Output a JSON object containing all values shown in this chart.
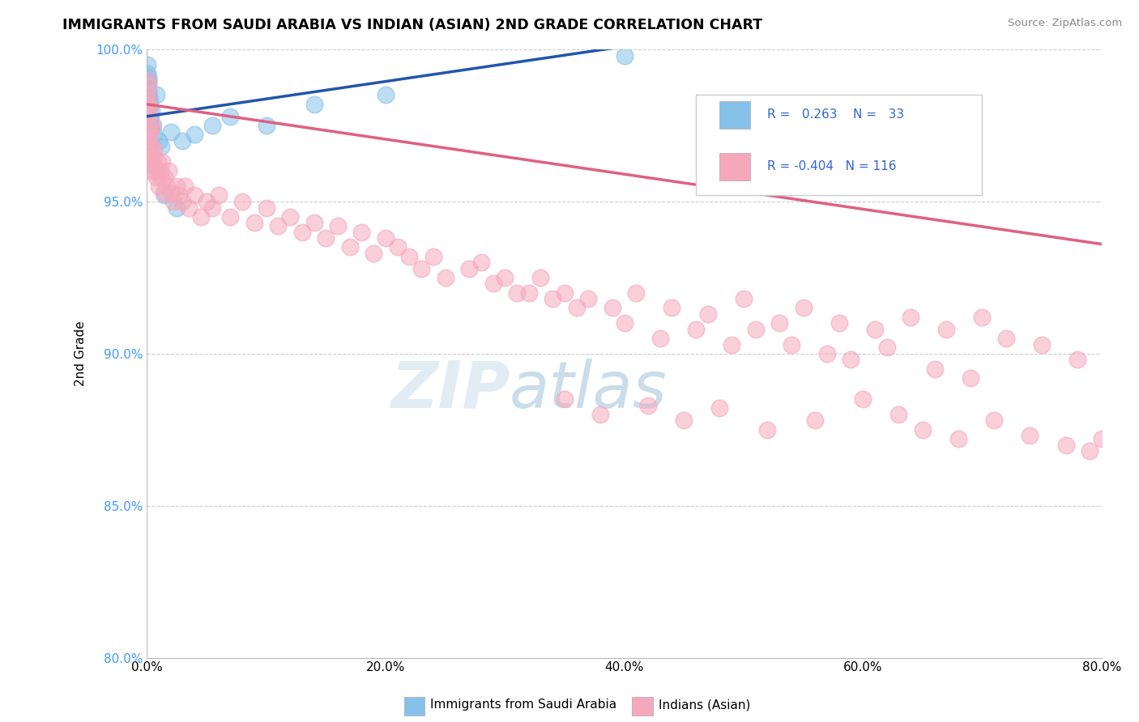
{
  "title": "IMMIGRANTS FROM SAUDI ARABIA VS INDIAN (ASIAN) 2ND GRADE CORRELATION CHART",
  "source": "Source: ZipAtlas.com",
  "ylabel": "2nd Grade",
  "xlim": [
    0.0,
    80.0
  ],
  "ylim": [
    80.0,
    100.0
  ],
  "xticks": [
    0.0,
    20.0,
    40.0,
    60.0,
    80.0
  ],
  "yticks": [
    80.0,
    85.0,
    90.0,
    95.0,
    100.0
  ],
  "xtick_labels": [
    "0.0%",
    "20.0%",
    "40.0%",
    "60.0%",
    "80.0%"
  ],
  "ytick_labels": [
    "80.0%",
    "85.0%",
    "90.0%",
    "95.0%",
    "100.0%"
  ],
  "blue_color": "#85C1E8",
  "pink_color": "#F5A8BC",
  "blue_line_color": "#2255AA",
  "pink_line_color": "#E06080",
  "R_blue": 0.263,
  "N_blue": 33,
  "R_pink": -0.404,
  "N_pink": 116,
  "watermark_zip": "ZIP",
  "watermark_atlas": "atlas",
  "legend_label_blue": "Immigrants from Saudi Arabia",
  "legend_label_pink": "Indians (Asian)",
  "blue_x": [
    0.05,
    0.07,
    0.08,
    0.09,
    0.1,
    0.11,
    0.12,
    0.13,
    0.14,
    0.15,
    0.18,
    0.2,
    0.22,
    0.25,
    0.3,
    0.35,
    0.4,
    0.5,
    0.6,
    0.8,
    1.0,
    1.2,
    1.5,
    2.0,
    2.5,
    3.0,
    4.0,
    5.5,
    7.0,
    10.0,
    14.0,
    20.0,
    40.0
  ],
  "blue_y": [
    99.5,
    99.2,
    98.8,
    98.6,
    99.0,
    98.5,
    98.7,
    99.1,
    98.9,
    98.4,
    98.3,
    98.0,
    97.8,
    98.2,
    97.5,
    97.8,
    98.0,
    97.5,
    97.2,
    98.5,
    97.0,
    96.8,
    95.2,
    97.3,
    94.8,
    97.0,
    97.2,
    97.5,
    97.8,
    97.5,
    98.2,
    98.5,
    99.8
  ],
  "pink_x": [
    0.05,
    0.07,
    0.08,
    0.09,
    0.1,
    0.12,
    0.13,
    0.15,
    0.17,
    0.18,
    0.2,
    0.22,
    0.25,
    0.28,
    0.3,
    0.35,
    0.4,
    0.45,
    0.5,
    0.55,
    0.6,
    0.7,
    0.8,
    0.9,
    1.0,
    1.1,
    1.2,
    1.3,
    1.4,
    1.5,
    1.7,
    1.8,
    2.0,
    2.2,
    2.5,
    2.7,
    3.0,
    3.2,
    3.5,
    4.0,
    4.5,
    5.0,
    5.5,
    6.0,
    7.0,
    8.0,
    9.0,
    10.0,
    11.0,
    12.0,
    13.0,
    14.0,
    15.0,
    16.0,
    17.0,
    18.0,
    19.0,
    20.0,
    21.0,
    22.0,
    23.0,
    24.0,
    25.0,
    27.0,
    29.0,
    31.0,
    33.0,
    35.0,
    37.0,
    39.0,
    41.0,
    44.0,
    47.0,
    50.0,
    53.0,
    55.0,
    58.0,
    61.0,
    64.0,
    67.0,
    70.0,
    72.0,
    75.0,
    78.0,
    35.0,
    38.0,
    42.0,
    45.0,
    48.0,
    52.0,
    56.0,
    60.0,
    63.0,
    65.0,
    68.0,
    71.0,
    74.0,
    77.0,
    79.0,
    80.0,
    28.0,
    30.0,
    32.0,
    34.0,
    36.0,
    40.0,
    43.0,
    46.0,
    49.0,
    51.0,
    54.0,
    57.0,
    59.0,
    62.0,
    66.0,
    69.0
  ],
  "pink_y": [
    99.0,
    98.5,
    98.2,
    98.8,
    98.0,
    98.3,
    97.8,
    97.5,
    98.0,
    97.2,
    97.0,
    96.8,
    97.3,
    96.5,
    96.8,
    96.3,
    96.0,
    97.5,
    96.5,
    96.2,
    96.7,
    96.0,
    95.8,
    96.3,
    95.5,
    96.0,
    95.8,
    96.3,
    95.3,
    95.8,
    95.5,
    96.0,
    95.3,
    95.0,
    95.5,
    95.2,
    95.0,
    95.5,
    94.8,
    95.2,
    94.5,
    95.0,
    94.8,
    95.2,
    94.5,
    95.0,
    94.3,
    94.8,
    94.2,
    94.5,
    94.0,
    94.3,
    93.8,
    94.2,
    93.5,
    94.0,
    93.3,
    93.8,
    93.5,
    93.2,
    92.8,
    93.2,
    92.5,
    92.8,
    92.3,
    92.0,
    92.5,
    92.0,
    91.8,
    91.5,
    92.0,
    91.5,
    91.3,
    91.8,
    91.0,
    91.5,
    91.0,
    90.8,
    91.2,
    90.8,
    91.2,
    90.5,
    90.3,
    89.8,
    88.5,
    88.0,
    88.3,
    87.8,
    88.2,
    87.5,
    87.8,
    88.5,
    88.0,
    87.5,
    87.2,
    87.8,
    87.3,
    87.0,
    86.8,
    87.2,
    93.0,
    92.5,
    92.0,
    91.8,
    91.5,
    91.0,
    90.5,
    90.8,
    90.3,
    90.8,
    90.3,
    90.0,
    89.8,
    90.2,
    89.5,
    89.2
  ],
  "blue_line_x0": 0.0,
  "blue_line_x1": 40.0,
  "blue_line_y0": 97.8,
  "blue_line_y1": 100.1,
  "pink_line_x0": 0.0,
  "pink_line_x1": 80.0,
  "pink_line_y0": 98.2,
  "pink_line_y1": 93.6
}
